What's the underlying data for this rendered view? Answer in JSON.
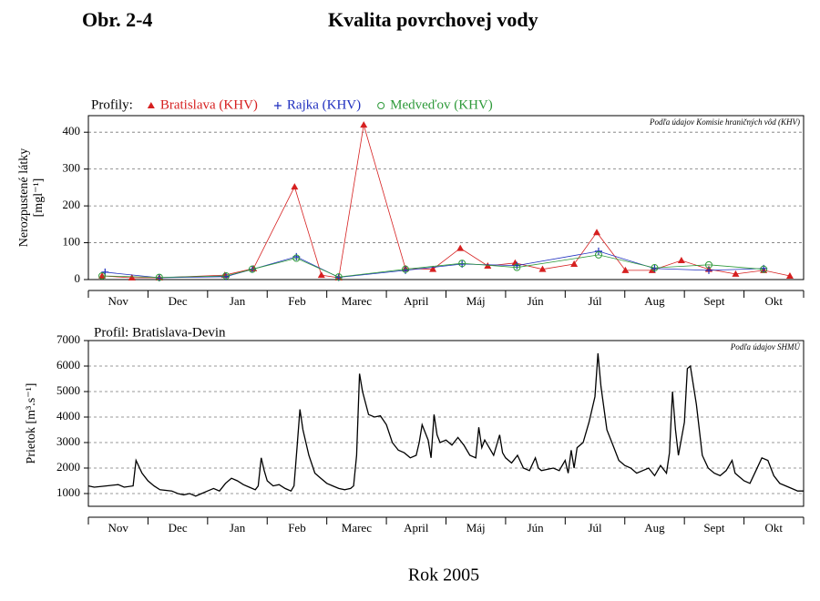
{
  "header": {
    "label": "Obr. 2-4",
    "title": "Kvalita povrchovej vody"
  },
  "footer": "Rok 2005",
  "chart_data": [
    {
      "type": "line",
      "legend_title": "Profily:",
      "annotation": "Podľa údajov Komisie hraničných vôd (KHV)",
      "ylabel": [
        "Nerozpustené látky",
        "[mgl⁻¹]"
      ],
      "categories": [
        "Nov",
        "Dec",
        "Jan",
        "Feb",
        "Marec",
        "April",
        "Máj",
        "Jún",
        "Júl",
        "Aug",
        "Sept",
        "Okt"
      ],
      "xlim": [
        0,
        12
      ],
      "xticks": [
        0,
        1,
        2,
        3,
        4,
        5,
        6,
        7,
        8,
        9,
        10,
        11,
        12
      ],
      "ylim": [
        0,
        445
      ],
      "yticks": [
        0,
        100,
        200,
        300,
        400
      ],
      "grid": true,
      "series": [
        {
          "name": "Bratislava (KHV)",
          "color": "#d62020",
          "marker": "triangle",
          "x": [
            0.23,
            0.73,
            1.19,
            2.29,
            2.77,
            3.46,
            3.91,
            4.2,
            4.62,
            5.32,
            5.78,
            6.24,
            6.7,
            7.16,
            7.62,
            8.15,
            8.53,
            9.01,
            9.46,
            9.95,
            10.41,
            10.86,
            11.33,
            11.77
          ],
          "values": [
            10,
            5,
            5,
            12,
            30,
            252,
            12,
            5,
            420,
            30,
            28,
            85,
            37,
            45,
            28,
            42,
            128,
            25,
            25,
            52,
            28,
            15,
            25,
            10
          ]
        },
        {
          "name": "Rajka (KHV)",
          "color": "#1f2fbf",
          "marker": "plus",
          "x": [
            0.28,
            1.19,
            2.31,
            2.75,
            3.49,
            4.2,
            5.32,
            6.27,
            7.19,
            8.56,
            9.5,
            10.41,
            11.33
          ],
          "values": [
            20,
            5,
            8,
            28,
            62,
            6,
            25,
            42,
            38,
            77,
            30,
            25,
            30
          ]
        },
        {
          "name": "Medveďov (KHV)",
          "color": "#2e9a3a",
          "marker": "circle",
          "x": [
            0.23,
            1.19,
            2.31,
            2.75,
            3.49,
            4.2,
            5.32,
            6.27,
            7.19,
            8.56,
            9.5,
            10.41,
            11.33
          ],
          "values": [
            10,
            6,
            10,
            28,
            58,
            7,
            28,
            44,
            33,
            67,
            32,
            40,
            28
          ]
        }
      ]
    },
    {
      "type": "line",
      "subtitle": "Profil: Bratislava-Devin",
      "annotation": "Podľa údajov SHMÚ",
      "ylabel": [
        "Prietok [m³.s⁻¹]"
      ],
      "categories": [
        "Nov",
        "Dec",
        "Jan",
        "Feb",
        "Marec",
        "April",
        "Máj",
        "Jún",
        "Júl",
        "Aug",
        "Sept",
        "Okt"
      ],
      "xlim": [
        0,
        12
      ],
      "xticks": [
        0,
        1,
        2,
        3,
        4,
        5,
        6,
        7,
        8,
        9,
        10,
        11,
        12
      ],
      "ylim": [
        500,
        7000
      ],
      "yticks": [
        1000,
        2000,
        3000,
        4000,
        5000,
        6000,
        7000
      ],
      "grid": true,
      "series": [
        {
          "name": "Bratislava-Devin",
          "color": "#000000",
          "x": [
            0,
            0.1,
            0.3,
            0.5,
            0.6,
            0.75,
            0.8,
            0.9,
            1.0,
            1.1,
            1.2,
            1.4,
            1.5,
            1.6,
            1.7,
            1.8,
            1.9,
            2.0,
            2.1,
            2.2,
            2.3,
            2.4,
            2.5,
            2.6,
            2.7,
            2.8,
            2.85,
            2.9,
            2.95,
            3.0,
            3.1,
            3.2,
            3.3,
            3.4,
            3.45,
            3.5,
            3.55,
            3.6,
            3.7,
            3.8,
            3.9,
            4.0,
            4.1,
            4.2,
            4.3,
            4.4,
            4.45,
            4.5,
            4.55,
            4.6,
            4.7,
            4.8,
            4.9,
            5.0,
            5.1,
            5.2,
            5.3,
            5.4,
            5.5,
            5.55,
            5.6,
            5.7,
            5.75,
            5.8,
            5.85,
            5.9,
            6.0,
            6.1,
            6.2,
            6.3,
            6.4,
            6.5,
            6.55,
            6.6,
            6.65,
            6.7,
            6.8,
            6.9,
            6.95,
            7.0,
            7.1,
            7.2,
            7.3,
            7.4,
            7.5,
            7.55,
            7.6,
            7.8,
            7.9,
            8.0,
            8.05,
            8.1,
            8.15,
            8.2,
            8.3,
            8.4,
            8.5,
            8.55,
            8.6,
            8.7,
            8.8,
            8.9,
            9.0,
            9.1,
            9.2,
            9.3,
            9.4,
            9.5,
            9.6,
            9.7,
            9.75,
            9.8,
            9.85,
            9.9,
            10.0,
            10.05,
            10.1,
            10.2,
            10.3,
            10.4,
            10.5,
            10.6,
            10.7,
            10.8,
            10.85,
            10.9,
            11.0,
            11.1,
            11.2,
            11.3,
            11.4,
            11.5,
            11.6,
            11.7,
            11.8,
            11.9,
            12.0
          ],
          "values": [
            1300,
            1250,
            1300,
            1350,
            1250,
            1300,
            2300,
            1800,
            1500,
            1300,
            1150,
            1100,
            1000,
            950,
            1000,
            900,
            1000,
            1100,
            1200,
            1100,
            1400,
            1600,
            1500,
            1350,
            1250,
            1150,
            1300,
            2400,
            1900,
            1500,
            1300,
            1350,
            1200,
            1100,
            1300,
            2800,
            4300,
            3500,
            2500,
            1800,
            1600,
            1400,
            1300,
            1200,
            1150,
            1200,
            1300,
            2500,
            5700,
            5000,
            4100,
            4000,
            4050,
            3700,
            3000,
            2700,
            2600,
            2400,
            2500,
            3000,
            3700,
            3100,
            2400,
            4100,
            3300,
            3000,
            3100,
            2900,
            3200,
            2900,
            2500,
            2400,
            3600,
            2800,
            3100,
            2900,
            2500,
            3300,
            2600,
            2400,
            2200,
            2500,
            2000,
            1900,
            2400,
            2000,
            1900,
            2000,
            1900,
            2300,
            1800,
            2700,
            2000,
            2800,
            3000,
            3800,
            4800,
            6500,
            5200,
            3500,
            2900,
            2300,
            2100,
            2000,
            1800,
            1900,
            2000,
            1700,
            2100,
            1800,
            2600,
            5000,
            3500,
            2500,
            3800,
            5900,
            6000,
            4500,
            2500,
            2000,
            1800,
            1700,
            1900,
            2300,
            1800,
            1700,
            1500,
            1400,
            1900,
            2400,
            2300,
            1700,
            1400,
            1300,
            1200,
            1100,
            1100
          ]
        }
      ]
    }
  ]
}
